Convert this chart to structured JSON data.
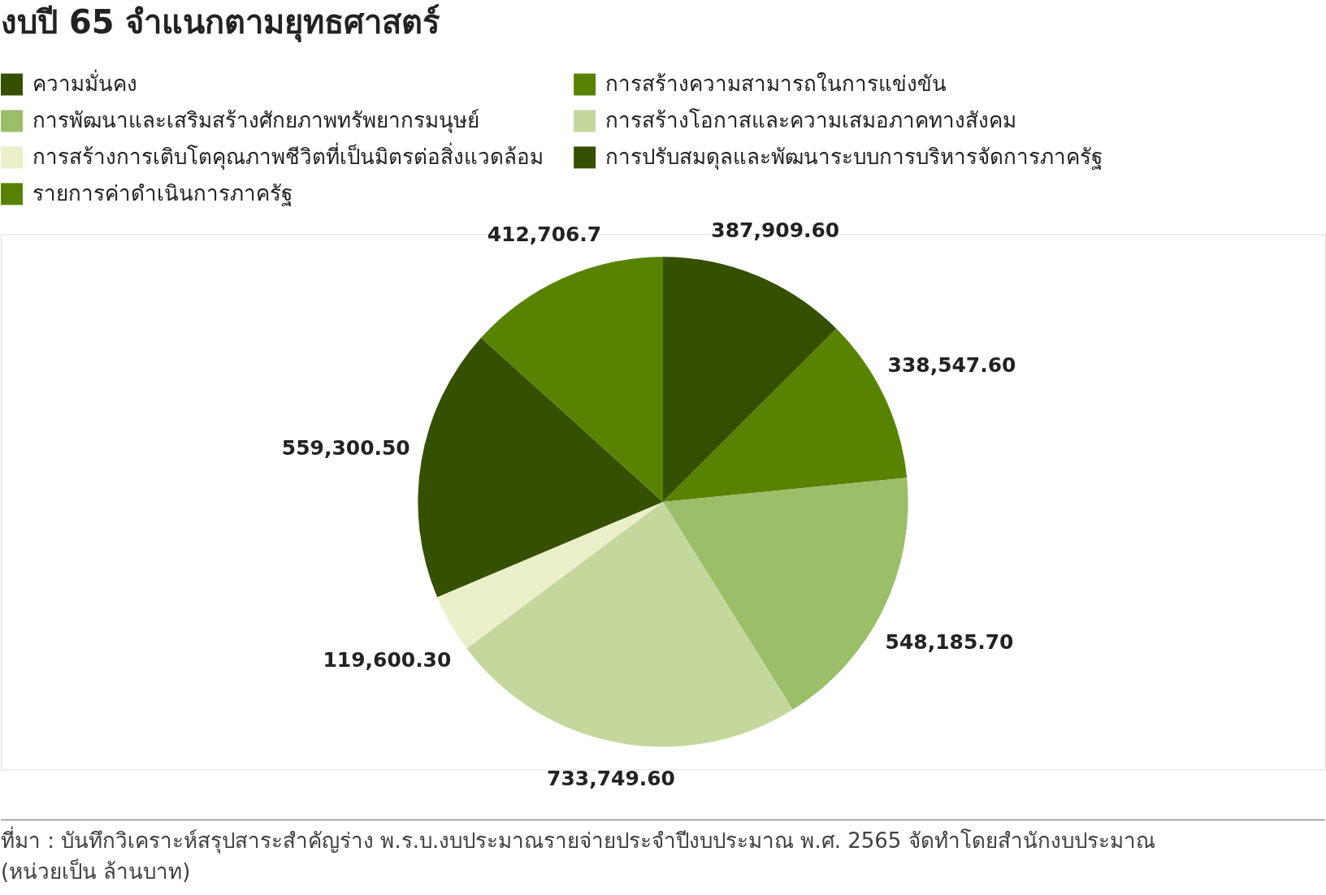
{
  "chart_data": {
    "type": "pie",
    "title": "งบปี 65 จำแนกตามยุทธศาสตร์",
    "categories": [
      "ความมั่นคง",
      "การสร้างความสามารถในการแข่งขัน",
      "การพัฒนาและเสริมสร้างศักยภาพทรัพยากรมนุษย์",
      "การสร้างโอกาสและความเสมอภาคทางสังคม",
      "การสร้างการเติบโตคุณภาพชีวิตที่เป็นมิตรต่อสิ่งแวดล้อม",
      "การปรับสมดุลและพัฒนาระบบการบริหารจัดการภาครัฐ",
      "รายการค่าดำเนินการภาครัฐ"
    ],
    "values": [
      387909.6,
      338547.6,
      548185.7,
      733749.6,
      119600.3,
      559300.5,
      412706.7
    ],
    "value_labels": [
      "387,909.60",
      "338,547.60",
      "548,185.70",
      "733,749.60",
      "119,600.30",
      "559,300.50",
      "412,706.7"
    ],
    "colors": [
      "#355000",
      "#588300",
      "#9bbe69",
      "#c4d79c",
      "#ebefca",
      "#355000",
      "#588300"
    ],
    "legend": "top",
    "annotations": [
      "ที่มา : บันทึกวิเคราะห์สรุปสาระสำคัญร่าง พ.ร.บ.งบประมาณรายจ่ายประจำปีงบประมาณ พ.ศ. 2565 จัดทำโดยสำนักงบประมาณ (หน่วยเป็น ล้านบาท)"
    ]
  }
}
